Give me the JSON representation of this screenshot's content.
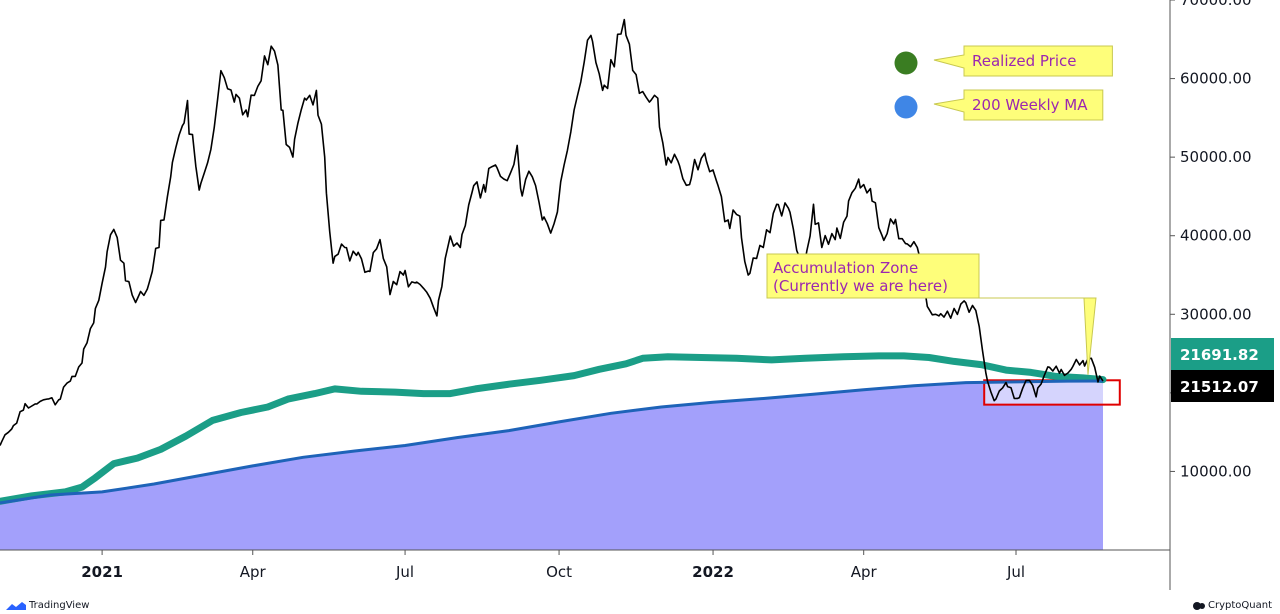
{
  "chart_data": {
    "type": "line",
    "yaxis": {
      "range": [
        0,
        70000
      ],
      "ticks": [
        "10000.00",
        "20000.00",
        "30000.00",
        "40000.00",
        "50000.00",
        "60000.00",
        "70000.00"
      ]
    },
    "xaxis": {
      "range": [
        "2020-11-01",
        "2022-10-01"
      ],
      "ticks": [
        {
          "label": "2021",
          "date": "2021-01-01",
          "bold": true
        },
        {
          "label": "Apr",
          "date": "2021-04-01",
          "bold": false
        },
        {
          "label": "Jul",
          "date": "2021-07-01",
          "bold": false
        },
        {
          "label": "Oct",
          "date": "2021-10-01",
          "bold": false
        },
        {
          "label": "2022",
          "date": "2022-01-01",
          "bold": true
        },
        {
          "label": "Apr",
          "date": "2022-04-01",
          "bold": false
        },
        {
          "label": "Jul",
          "date": "2022-07-01",
          "bold": false
        }
      ]
    },
    "series": [
      {
        "name": "Price",
        "color": "#000000",
        "kind": "line",
        "points": [
          [
            "2020-11-01",
            13300
          ],
          [
            "2020-11-08",
            15400
          ],
          [
            "2020-11-15",
            17800
          ],
          [
            "2020-11-22",
            18600
          ],
          [
            "2020-11-29",
            19200
          ],
          [
            "2020-12-06",
            19100
          ],
          [
            "2020-12-13",
            21500
          ],
          [
            "2020-12-20",
            23800
          ],
          [
            "2020-12-27",
            28900
          ],
          [
            "2021-01-03",
            36000
          ],
          [
            "2021-01-08",
            40800
          ],
          [
            "2021-01-14",
            36500
          ],
          [
            "2021-01-21",
            31500
          ],
          [
            "2021-01-28",
            33200
          ],
          [
            "2021-02-04",
            38500
          ],
          [
            "2021-02-11",
            47500
          ],
          [
            "2021-02-18",
            54000
          ],
          [
            "2021-02-21",
            57200
          ],
          [
            "2021-02-28",
            45800
          ],
          [
            "2021-03-07",
            51000
          ],
          [
            "2021-03-13",
            61000
          ],
          [
            "2021-03-21",
            57000
          ],
          [
            "2021-03-28",
            56000
          ],
          [
            "2021-04-04",
            59000
          ],
          [
            "2021-04-14",
            63500
          ],
          [
            "2021-04-18",
            56000
          ],
          [
            "2021-04-25",
            50000
          ],
          [
            "2021-05-02",
            57500
          ],
          [
            "2021-05-09",
            58500
          ],
          [
            "2021-05-14",
            50000
          ],
          [
            "2021-05-19",
            36500
          ],
          [
            "2021-05-26",
            38500
          ],
          [
            "2021-06-02",
            37500
          ],
          [
            "2021-06-09",
            35500
          ],
          [
            "2021-06-16",
            39500
          ],
          [
            "2021-06-22",
            32500
          ],
          [
            "2021-06-30",
            35000
          ],
          [
            "2021-07-07",
            34000
          ],
          [
            "2021-07-14",
            32800
          ],
          [
            "2021-07-20",
            29800
          ],
          [
            "2021-07-27",
            39000
          ],
          [
            "2021-08-03",
            38500
          ],
          [
            "2021-08-10",
            45500
          ],
          [
            "2021-08-17",
            46500
          ],
          [
            "2021-08-24",
            49000
          ],
          [
            "2021-08-31",
            47000
          ],
          [
            "2021-09-06",
            51500
          ],
          [
            "2021-09-08",
            46000
          ],
          [
            "2021-09-15",
            47500
          ],
          [
            "2021-09-21",
            42000
          ],
          [
            "2021-09-28",
            41500
          ],
          [
            "2021-10-04",
            49000
          ],
          [
            "2021-10-10",
            56000
          ],
          [
            "2021-10-20",
            65500
          ],
          [
            "2021-10-27",
            58500
          ],
          [
            "2021-11-03",
            61500
          ],
          [
            "2021-11-09",
            67500
          ],
          [
            "2021-11-16",
            60500
          ],
          [
            "2021-11-24",
            57000
          ],
          [
            "2021-11-29",
            57500
          ],
          [
            "2021-12-04",
            49000
          ],
          [
            "2021-12-11",
            49500
          ],
          [
            "2021-12-18",
            46500
          ],
          [
            "2021-12-27",
            50500
          ],
          [
            "2022-01-03",
            47000
          ],
          [
            "2022-01-10",
            42000
          ],
          [
            "2022-01-17",
            42500
          ],
          [
            "2022-01-22",
            35000
          ],
          [
            "2022-01-31",
            38500
          ],
          [
            "2022-02-08",
            44000
          ],
          [
            "2022-02-15",
            43500
          ],
          [
            "2022-02-24",
            35500
          ],
          [
            "2022-03-02",
            44000
          ],
          [
            "2022-03-07",
            38500
          ],
          [
            "2022-03-15",
            39500
          ],
          [
            "2022-03-22",
            42500
          ],
          [
            "2022-03-29",
            47200
          ],
          [
            "2022-04-05",
            46000
          ],
          [
            "2022-04-12",
            40000
          ],
          [
            "2022-04-19",
            41500
          ],
          [
            "2022-04-26",
            39000
          ],
          [
            "2022-05-03",
            38500
          ],
          [
            "2022-05-09",
            31000
          ],
          [
            "2022-05-16",
            29800
          ],
          [
            "2022-05-23",
            29500
          ],
          [
            "2022-05-31",
            31700
          ],
          [
            "2022-06-07",
            30500
          ],
          [
            "2022-06-13",
            22500
          ],
          [
            "2022-06-18",
            19000
          ],
          [
            "2022-06-25",
            21300
          ],
          [
            "2022-07-02",
            19300
          ],
          [
            "2022-07-09",
            21600
          ],
          [
            "2022-07-13",
            19500
          ],
          [
            "2022-07-20",
            23300
          ],
          [
            "2022-07-27",
            22500
          ],
          [
            "2022-08-03",
            23000
          ],
          [
            "2022-08-10",
            24100
          ],
          [
            "2022-08-15",
            24400
          ],
          [
            "2022-08-19",
            21400
          ],
          [
            "2022-08-22",
            21500
          ]
        ]
      },
      {
        "name": "Realized Price",
        "color": "#1b9e87",
        "kind": "thick-line",
        "points": [
          [
            "2020-11-01",
            6200
          ],
          [
            "2020-11-20",
            6900
          ],
          [
            "2020-12-10",
            7400
          ],
          [
            "2020-12-20",
            8000
          ],
          [
            "2020-12-28",
            9200
          ],
          [
            "2021-01-08",
            11000
          ],
          [
            "2021-01-22",
            11700
          ],
          [
            "2021-02-05",
            12800
          ],
          [
            "2021-02-20",
            14500
          ],
          [
            "2021-03-08",
            16500
          ],
          [
            "2021-03-25",
            17500
          ],
          [
            "2021-04-10",
            18200
          ],
          [
            "2021-04-22",
            19200
          ],
          [
            "2021-05-08",
            19900
          ],
          [
            "2021-05-20",
            20500
          ],
          [
            "2021-06-05",
            20200
          ],
          [
            "2021-06-25",
            20100
          ],
          [
            "2021-07-12",
            19900
          ],
          [
            "2021-07-28",
            19900
          ],
          [
            "2021-08-12",
            20500
          ],
          [
            "2021-09-01",
            21100
          ],
          [
            "2021-09-20",
            21600
          ],
          [
            "2021-10-10",
            22200
          ],
          [
            "2021-10-25",
            23000
          ],
          [
            "2021-11-10",
            23700
          ],
          [
            "2021-11-20",
            24400
          ],
          [
            "2021-12-05",
            24600
          ],
          [
            "2021-12-25",
            24500
          ],
          [
            "2022-01-15",
            24400
          ],
          [
            "2022-02-05",
            24200
          ],
          [
            "2022-02-25",
            24400
          ],
          [
            "2022-03-20",
            24600
          ],
          [
            "2022-04-10",
            24700
          ],
          [
            "2022-04-25",
            24700
          ],
          [
            "2022-05-10",
            24500
          ],
          [
            "2022-05-25",
            24000
          ],
          [
            "2022-06-10",
            23600
          ],
          [
            "2022-06-25",
            22900
          ],
          [
            "2022-07-10",
            22600
          ],
          [
            "2022-07-25",
            22100
          ],
          [
            "2022-08-10",
            21900
          ],
          [
            "2022-08-22",
            21692
          ]
        ]
      },
      {
        "name": "200 Weekly MA",
        "color": "#1e63b8",
        "kind": "line",
        "fill": "#a3a0fb",
        "points": [
          [
            "2020-11-01",
            6000
          ],
          [
            "2020-12-01",
            7000
          ],
          [
            "2021-01-01",
            7400
          ],
          [
            "2021-02-01",
            8400
          ],
          [
            "2021-03-01",
            9500
          ],
          [
            "2021-04-01",
            10700
          ],
          [
            "2021-05-01",
            11800
          ],
          [
            "2021-06-01",
            12600
          ],
          [
            "2021-07-01",
            13300
          ],
          [
            "2021-08-01",
            14300
          ],
          [
            "2021-09-01",
            15200
          ],
          [
            "2021-10-01",
            16300
          ],
          [
            "2021-11-01",
            17400
          ],
          [
            "2021-12-01",
            18200
          ],
          [
            "2022-01-01",
            18800
          ],
          [
            "2022-02-01",
            19300
          ],
          [
            "2022-03-01",
            19800
          ],
          [
            "2022-04-01",
            20400
          ],
          [
            "2022-05-01",
            20900
          ],
          [
            "2022-06-01",
            21300
          ],
          [
            "2022-07-01",
            21400
          ],
          [
            "2022-08-01",
            21500
          ],
          [
            "2022-08-22",
            21512
          ]
        ]
      }
    ],
    "legend": [
      {
        "dot_color": "#3a7d22",
        "label": "Realized Price"
      },
      {
        "dot_color": "#3f86e6",
        "label": "200 Weekly MA"
      }
    ],
    "legend_position": "top-right",
    "annotation": {
      "lines": [
        "Accumulation Zone",
        "(Currently we are here)"
      ],
      "zone": {
        "x_start": "2022-06-12",
        "x_end": "2022-09-01",
        "y_low": 18500,
        "y_high": 21600
      },
      "pointer": [
        "2022-08-13",
        22300
      ]
    },
    "last_values": [
      {
        "label": "21691.82",
        "value": 21691.82,
        "color": "#1b9e87"
      },
      {
        "label": "21512.07",
        "value": 21512.07,
        "color": "#000000"
      }
    ]
  },
  "footer": {
    "left": "TradingView",
    "right": "CryptoQuant"
  }
}
